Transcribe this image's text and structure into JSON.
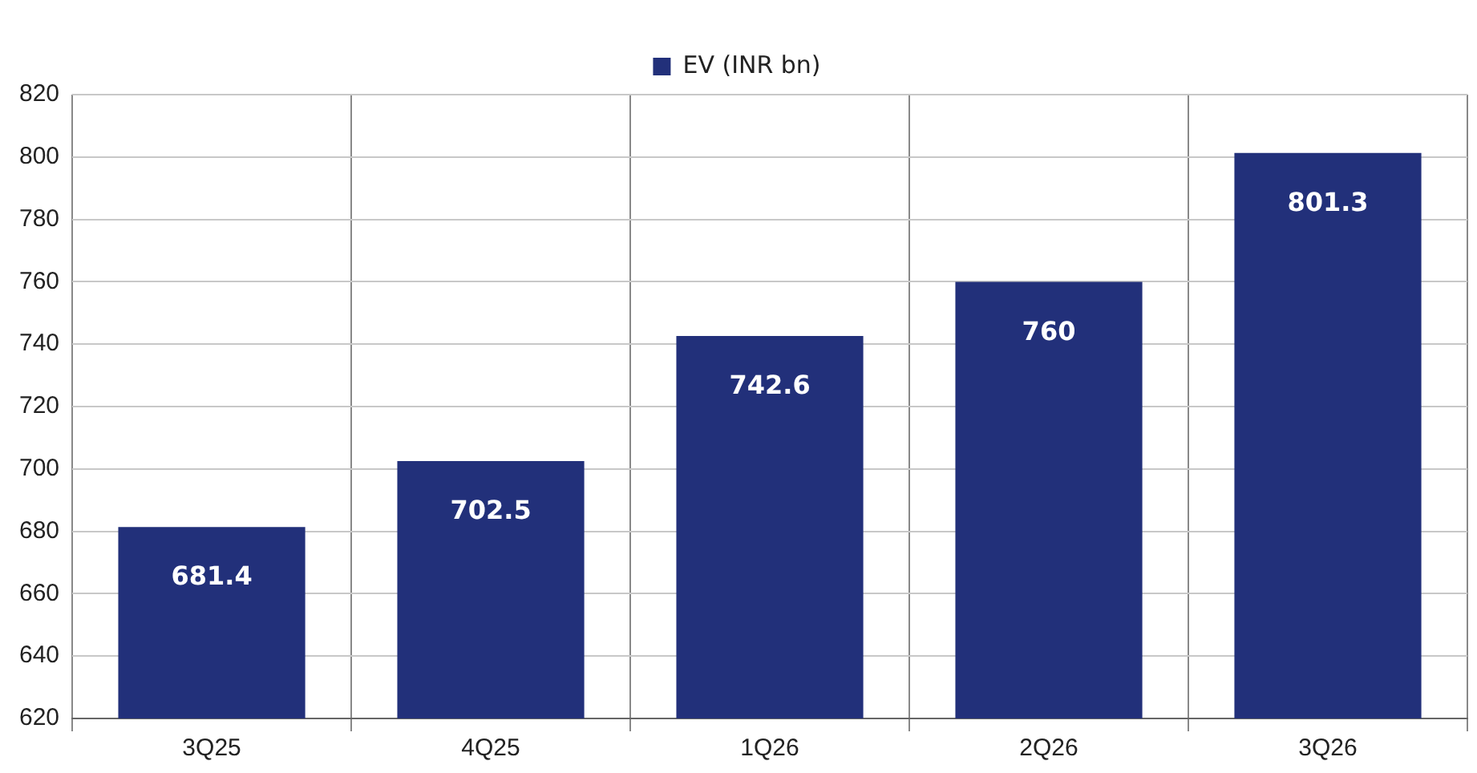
{
  "chart_data": {
    "type": "bar",
    "categories": [
      "3Q25",
      "4Q25",
      "1Q26",
      "2Q26",
      "3Q26"
    ],
    "series": [
      {
        "name": "EV (INR bn)",
        "color": "#22307a",
        "values": [
          681.4,
          702.5,
          742.6,
          760,
          801.3
        ]
      }
    ],
    "ylim": [
      620,
      820
    ],
    "yticks": [
      620,
      640,
      660,
      680,
      700,
      720,
      740,
      760,
      780,
      800,
      820
    ],
    "grid": true,
    "legend": "top",
    "data_labels": true
  }
}
